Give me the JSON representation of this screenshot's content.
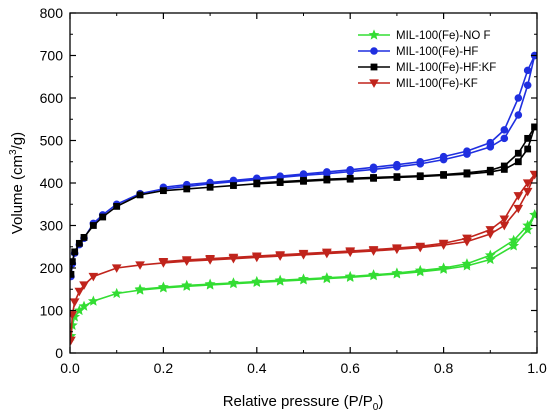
{
  "chart_data": {
    "type": "line",
    "xlabel": "Relative pressure (P/P0)",
    "ylabel": "Volume (cm3/g)",
    "xlim": [
      0.0,
      1.0
    ],
    "ylim": [
      0,
      800
    ],
    "xticks": [
      "0.0",
      "0.2",
      "0.4",
      "0.6",
      "0.8",
      "1.0"
    ],
    "yticks": [
      "0",
      "100",
      "200",
      "300",
      "400",
      "500",
      "600",
      "700",
      "800"
    ],
    "xtick_values": [
      0.0,
      0.2,
      0.4,
      0.6,
      0.8,
      1.0
    ],
    "ytick_values": [
      0,
      100,
      200,
      300,
      400,
      500,
      600,
      700,
      800
    ],
    "grid": false,
    "legend_position": "top-right",
    "series": [
      {
        "name": "MIL-100(Fe)-NO F",
        "color": "#33dd33",
        "marker": "star",
        "adsorption": [
          [
            0.002,
            40
          ],
          [
            0.005,
            65
          ],
          [
            0.01,
            85
          ],
          [
            0.02,
            100
          ],
          [
            0.03,
            110
          ],
          [
            0.05,
            122
          ],
          [
            0.1,
            140
          ],
          [
            0.15,
            148
          ],
          [
            0.2,
            153
          ],
          [
            0.25,
            157
          ],
          [
            0.3,
            160
          ],
          [
            0.35,
            163
          ],
          [
            0.4,
            166
          ],
          [
            0.45,
            169
          ],
          [
            0.5,
            172
          ],
          [
            0.55,
            175
          ],
          [
            0.6,
            178
          ],
          [
            0.65,
            182
          ],
          [
            0.7,
            186
          ],
          [
            0.75,
            191
          ],
          [
            0.8,
            197
          ],
          [
            0.85,
            205
          ],
          [
            0.9,
            220
          ],
          [
            0.95,
            252
          ],
          [
            0.98,
            290
          ],
          [
            0.995,
            325
          ]
        ],
        "desorption": [
          [
            0.995,
            325
          ],
          [
            0.98,
            300
          ],
          [
            0.95,
            265
          ],
          [
            0.9,
            230
          ],
          [
            0.85,
            210
          ],
          [
            0.8,
            200
          ],
          [
            0.75,
            194
          ],
          [
            0.7,
            188
          ],
          [
            0.65,
            184
          ],
          [
            0.6,
            180
          ],
          [
            0.55,
            177
          ],
          [
            0.5,
            174
          ],
          [
            0.45,
            171
          ],
          [
            0.4,
            168
          ],
          [
            0.35,
            165
          ],
          [
            0.3,
            162
          ],
          [
            0.25,
            159
          ],
          [
            0.2,
            155
          ],
          [
            0.15,
            150
          ]
        ]
      },
      {
        "name": "MIL-100(Fe)-HF",
        "color": "#1f2fe0",
        "marker": "circle",
        "adsorption": [
          [
            0.002,
            180
          ],
          [
            0.005,
            210
          ],
          [
            0.01,
            235
          ],
          [
            0.02,
            255
          ],
          [
            0.03,
            270
          ],
          [
            0.05,
            305
          ],
          [
            0.07,
            325
          ],
          [
            0.1,
            350
          ],
          [
            0.15,
            375
          ],
          [
            0.2,
            386
          ],
          [
            0.25,
            392
          ],
          [
            0.3,
            398
          ],
          [
            0.35,
            403
          ],
          [
            0.4,
            408
          ],
          [
            0.45,
            413
          ],
          [
            0.5,
            418
          ],
          [
            0.55,
            422
          ],
          [
            0.6,
            427
          ],
          [
            0.65,
            432
          ],
          [
            0.7,
            438
          ],
          [
            0.75,
            445
          ],
          [
            0.8,
            455
          ],
          [
            0.85,
            468
          ],
          [
            0.9,
            485
          ],
          [
            0.93,
            505
          ],
          [
            0.96,
            560
          ],
          [
            0.98,
            630
          ],
          [
            0.995,
            700
          ]
        ],
        "desorption": [
          [
            0.995,
            700
          ],
          [
            0.98,
            665
          ],
          [
            0.96,
            600
          ],
          [
            0.93,
            525
          ],
          [
            0.9,
            495
          ],
          [
            0.85,
            475
          ],
          [
            0.8,
            462
          ],
          [
            0.75,
            450
          ],
          [
            0.7,
            443
          ],
          [
            0.65,
            437
          ],
          [
            0.6,
            431
          ],
          [
            0.55,
            426
          ],
          [
            0.5,
            421
          ],
          [
            0.45,
            416
          ],
          [
            0.4,
            411
          ],
          [
            0.35,
            406
          ],
          [
            0.3,
            401
          ],
          [
            0.25,
            396
          ],
          [
            0.2,
            390
          ]
        ]
      },
      {
        "name": "MIL-100(Fe)-HF:KF",
        "color": "#000000",
        "marker": "square",
        "adsorption": [
          [
            0.002,
            185
          ],
          [
            0.005,
            215
          ],
          [
            0.01,
            238
          ],
          [
            0.02,
            258
          ],
          [
            0.03,
            272
          ],
          [
            0.05,
            300
          ],
          [
            0.07,
            320
          ],
          [
            0.1,
            345
          ],
          [
            0.15,
            372
          ],
          [
            0.2,
            382
          ],
          [
            0.25,
            386
          ],
          [
            0.3,
            390
          ],
          [
            0.35,
            394
          ],
          [
            0.4,
            398
          ],
          [
            0.45,
            401
          ],
          [
            0.5,
            404
          ],
          [
            0.55,
            407
          ],
          [
            0.6,
            409
          ],
          [
            0.65,
            411
          ],
          [
            0.7,
            413
          ],
          [
            0.75,
            415
          ],
          [
            0.8,
            418
          ],
          [
            0.85,
            421
          ],
          [
            0.9,
            426
          ],
          [
            0.93,
            432
          ],
          [
            0.96,
            450
          ],
          [
            0.98,
            480
          ],
          [
            0.995,
            532
          ]
        ],
        "desorption": [
          [
            0.995,
            532
          ],
          [
            0.98,
            505
          ],
          [
            0.96,
            470
          ],
          [
            0.93,
            440
          ],
          [
            0.9,
            430
          ],
          [
            0.85,
            424
          ],
          [
            0.8,
            420
          ],
          [
            0.75,
            417
          ],
          [
            0.7,
            415
          ],
          [
            0.65,
            413
          ],
          [
            0.6,
            411
          ],
          [
            0.55,
            409
          ],
          [
            0.5,
            406
          ],
          [
            0.45,
            403
          ],
          [
            0.4,
            400
          ]
        ]
      },
      {
        "name": "MIL-100(Fe)-KF",
        "color": "#c0241c",
        "marker": "triangle-down",
        "adsorption": [
          [
            0.002,
            30
          ],
          [
            0.005,
            90
          ],
          [
            0.01,
            120
          ],
          [
            0.02,
            145
          ],
          [
            0.03,
            160
          ],
          [
            0.05,
            180
          ],
          [
            0.1,
            200
          ],
          [
            0.15,
            207
          ],
          [
            0.2,
            212
          ],
          [
            0.25,
            216
          ],
          [
            0.3,
            219
          ],
          [
            0.35,
            222
          ],
          [
            0.4,
            225
          ],
          [
            0.45,
            228
          ],
          [
            0.5,
            231
          ],
          [
            0.55,
            234
          ],
          [
            0.6,
            237
          ],
          [
            0.65,
            240
          ],
          [
            0.7,
            244
          ],
          [
            0.75,
            248
          ],
          [
            0.8,
            254
          ],
          [
            0.85,
            262
          ],
          [
            0.9,
            280
          ],
          [
            0.93,
            300
          ],
          [
            0.96,
            340
          ],
          [
            0.98,
            380
          ],
          [
            0.995,
            420
          ]
        ],
        "desorption": [
          [
            0.995,
            420
          ],
          [
            0.98,
            400
          ],
          [
            0.96,
            370
          ],
          [
            0.93,
            315
          ],
          [
            0.9,
            290
          ],
          [
            0.85,
            270
          ],
          [
            0.8,
            258
          ],
          [
            0.75,
            251
          ],
          [
            0.7,
            247
          ],
          [
            0.65,
            243
          ],
          [
            0.6,
            240
          ],
          [
            0.55,
            237
          ],
          [
            0.5,
            234
          ],
          [
            0.45,
            231
          ],
          [
            0.4,
            228
          ],
          [
            0.35,
            225
          ],
          [
            0.3,
            222
          ],
          [
            0.25,
            219
          ],
          [
            0.2,
            215
          ]
        ]
      }
    ]
  }
}
